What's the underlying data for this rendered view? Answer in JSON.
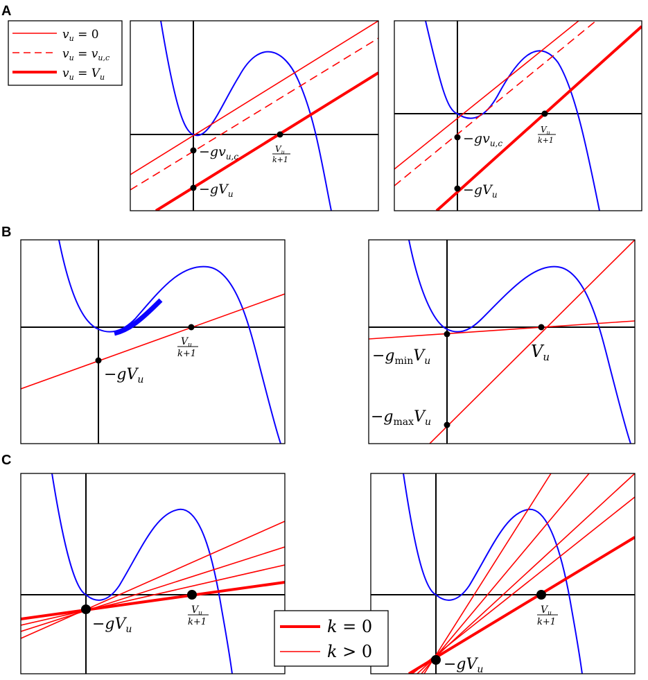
{
  "panel_letters": [
    "A",
    "B",
    "C"
  ],
  "legend_a": [
    {
      "label": "v_u = 0",
      "style": "thin"
    },
    {
      "label": "v_u = v_u,c",
      "style": "dashed"
    },
    {
      "label": "v_u = V_u",
      "style": "thick"
    }
  ],
  "legend_c": [
    {
      "label": "k = 0",
      "style": "thick"
    },
    {
      "label": "k > 0",
      "style": "thin"
    }
  ],
  "labels": {
    "neg_g_vuc": "−gv",
    "neg_g_vuc_sub": "u,c",
    "neg_g_Vu": "−gV",
    "Vu_sub": "u",
    "frac_num": "V",
    "frac_num_sub": "u",
    "frac_den": "k+1",
    "Vu": "V",
    "neg_gmin": "−g",
    "min_sub": "min",
    "neg_gmax": "−g",
    "max_sub": "max"
  },
  "colors": {
    "cubic": "#0a00ff",
    "line": "#ff0000",
    "axis": "#000000"
  }
}
